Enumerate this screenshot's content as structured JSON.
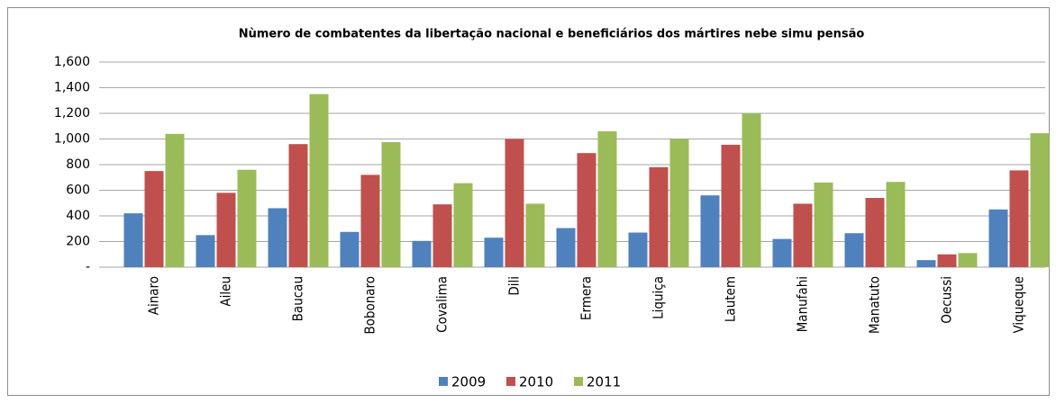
{
  "chart_data": {
    "type": "bar",
    "title": "Nùmero de combatentes da libertação nacional e beneficiários dos mártires nebe simu pensão",
    "categories": [
      "Ainaro",
      "Aileu",
      "Baucau",
      "Bobonaro",
      "Covalima",
      "Dili",
      "Ermera",
      "Liquiça",
      "Lautem",
      "Manufahi",
      "Manatuto",
      "Oecussi",
      "Viqueque"
    ],
    "series": [
      {
        "name": "2009",
        "color": "#4f81bd",
        "values": [
          420,
          250,
          460,
          275,
          205,
          230,
          305,
          270,
          560,
          220,
          265,
          55,
          450
        ]
      },
      {
        "name": "2010",
        "color": "#c0504d",
        "values": [
          750,
          580,
          960,
          720,
          490,
          1000,
          890,
          780,
          955,
          495,
          540,
          100,
          755
        ]
      },
      {
        "name": "2011",
        "color": "#9bbb59",
        "values": [
          1040,
          760,
          1350,
          975,
          655,
          495,
          1060,
          1000,
          1200,
          660,
          665,
          110,
          1045
        ]
      }
    ],
    "ylim": [
      0,
      1600
    ],
    "yticks": [
      {
        "value": 0,
        "label": "-"
      },
      200,
      400,
      600,
      800,
      {
        "value": 1000,
        "label": "1,000"
      },
      {
        "value": 1200,
        "label": "1,200"
      },
      {
        "value": 1400,
        "label": "1,400"
      },
      {
        "value": 1600,
        "label": "1,600"
      }
    ],
    "grid": true,
    "legend": "bottom"
  }
}
